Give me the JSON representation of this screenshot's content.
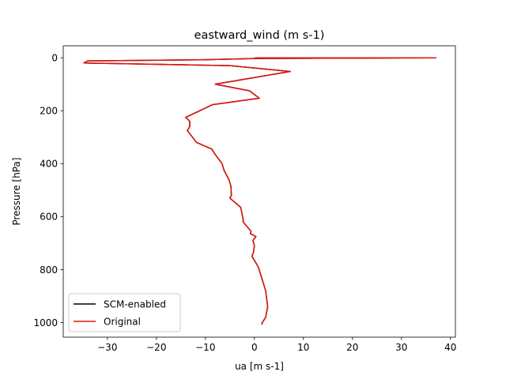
{
  "chart_data": {
    "type": "line",
    "title": "eastward_wind (m s-1)",
    "xlabel": "ua [m s-1]",
    "ylabel": "Pressure [hPa]",
    "xlim": [
      -39,
      41
    ],
    "ylim": [
      1055,
      -45
    ],
    "y_inverted": true,
    "grid": false,
    "legend_position": "lower-left",
    "x_ticks": [
      -30,
      -20,
      -10,
      0,
      10,
      20,
      30,
      40
    ],
    "x_tick_labels": [
      "−30",
      "−20",
      "−10",
      "0",
      "10",
      "20",
      "30",
      "40"
    ],
    "y_ticks": [
      0,
      200,
      400,
      600,
      800,
      1000
    ],
    "y_tick_labels": [
      "0",
      "200",
      "400",
      "600",
      "800",
      "1000"
    ],
    "series": [
      {
        "name": "SCM-enabled",
        "color": "#000000",
        "points": [
          [
            0.1,
            1.0
          ],
          [
            37.0,
            0.5
          ],
          [
            0.0,
            3.0
          ],
          [
            -11.5,
            8.0
          ],
          [
            -34.0,
            12.0
          ],
          [
            -34.8,
            20.0
          ],
          [
            -5.0,
            30.0
          ],
          [
            7.3,
            52.0
          ],
          [
            -8.0,
            100.0
          ],
          [
            -1.0,
            125.0
          ],
          [
            1.0,
            153.0
          ],
          [
            -8.5,
            177.0
          ],
          [
            -14.0,
            225.0
          ],
          [
            -13.2,
            240.0
          ],
          [
            -13.2,
            260.0
          ],
          [
            -13.7,
            275.0
          ],
          [
            -11.8,
            320.0
          ],
          [
            -8.7,
            345.0
          ],
          [
            -8.0,
            365.0
          ],
          [
            -6.6,
            400.0
          ],
          [
            -6.2,
            425.0
          ],
          [
            -5.2,
            460.0
          ],
          [
            -4.8,
            485.0
          ],
          [
            -4.7,
            520.0
          ],
          [
            -5.0,
            530.0
          ],
          [
            -2.8,
            565.0
          ],
          [
            -2.3,
            610.0
          ],
          [
            -2.3,
            620.0
          ],
          [
            -0.7,
            655.0
          ],
          [
            -0.8,
            665.0
          ],
          [
            -0.2,
            670.0
          ],
          [
            0.3,
            675.0
          ],
          [
            -0.3,
            690.0
          ],
          [
            0.0,
            710.0
          ],
          [
            -0.2,
            735.0
          ],
          [
            -0.5,
            750.0
          ],
          [
            0.8,
            790.0
          ],
          [
            2.3,
            880.0
          ],
          [
            2.7,
            940.0
          ],
          [
            2.3,
            980.0
          ],
          [
            1.6,
            1000.0
          ],
          [
            1.5,
            1008.0
          ]
        ]
      },
      {
        "name": "Original",
        "color": "#e5130f",
        "points": [
          [
            0.1,
            1.0
          ],
          [
            37.0,
            0.5
          ],
          [
            0.0,
            3.0
          ],
          [
            -11.5,
            8.0
          ],
          [
            -34.0,
            12.0
          ],
          [
            -34.8,
            20.0
          ],
          [
            -5.0,
            30.0
          ],
          [
            7.3,
            52.0
          ],
          [
            -8.0,
            100.0
          ],
          [
            -1.0,
            125.0
          ],
          [
            1.0,
            153.0
          ],
          [
            -8.5,
            177.0
          ],
          [
            -14.0,
            225.0
          ],
          [
            -13.2,
            240.0
          ],
          [
            -13.2,
            260.0
          ],
          [
            -13.7,
            275.0
          ],
          [
            -11.8,
            320.0
          ],
          [
            -8.7,
            345.0
          ],
          [
            -8.0,
            365.0
          ],
          [
            -6.6,
            400.0
          ],
          [
            -6.2,
            425.0
          ],
          [
            -5.2,
            460.0
          ],
          [
            -4.8,
            485.0
          ],
          [
            -4.7,
            520.0
          ],
          [
            -5.0,
            530.0
          ],
          [
            -2.8,
            565.0
          ],
          [
            -2.3,
            610.0
          ],
          [
            -2.3,
            620.0
          ],
          [
            -0.7,
            655.0
          ],
          [
            -0.8,
            665.0
          ],
          [
            -0.2,
            670.0
          ],
          [
            0.3,
            675.0
          ],
          [
            -0.3,
            690.0
          ],
          [
            0.0,
            710.0
          ],
          [
            -0.2,
            735.0
          ],
          [
            -0.5,
            750.0
          ],
          [
            0.8,
            790.0
          ],
          [
            2.3,
            880.0
          ],
          [
            2.7,
            940.0
          ],
          [
            2.3,
            980.0
          ],
          [
            1.6,
            1000.0
          ],
          [
            1.5,
            1008.0
          ]
        ]
      }
    ]
  }
}
